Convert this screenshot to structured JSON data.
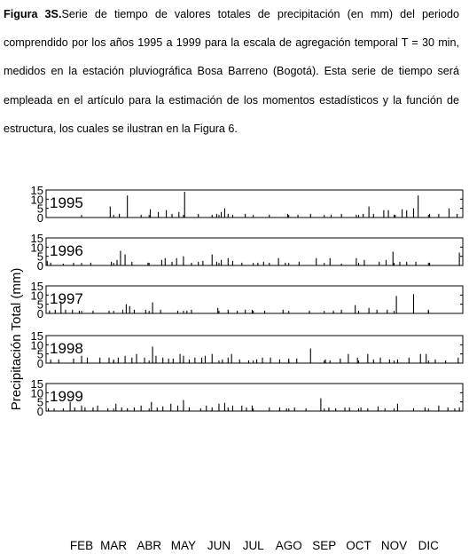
{
  "caption": {
    "lead": "Figura 3S.",
    "text": "Serie de tiempo de valores totales de precipitación (en mm) del periodo comprendido por los años 1995 a 1999 para la escala de agregación temporal T = 30 min, medidos en la estación pluviográfica Bosa Barreno (Bogotá). Esta serie de tiempo será empleada en el artículo para la estimación de los momentos estadísticos y la función de estructura, los cuales se ilustran en la Figura 6."
  },
  "chart_data": {
    "type": "bar",
    "ylabel": "Precipitación Total (mm)",
    "ylim": [
      0,
      15
    ],
    "yticks": [
      0,
      5,
      10,
      15
    ],
    "month_labels": [
      "FEB",
      "MAR",
      "ABR",
      "MAY",
      "JUN",
      "JUL",
      "AGO",
      "SEP",
      "OCT",
      "NOV",
      "DIC"
    ],
    "month_label_day": [
      32,
      60,
      91,
      121,
      152,
      182,
      213,
      244,
      274,
      305,
      335
    ],
    "xlim": [
      1,
      365
    ],
    "panels": [
      {
        "year": "1995",
        "events": [
          [
            57,
            6
          ],
          [
            65,
            2
          ],
          [
            72,
            12
          ],
          [
            84,
            1.5
          ],
          [
            92,
            4.5
          ],
          [
            99,
            3
          ],
          [
            106,
            4
          ],
          [
            111,
            2
          ],
          [
            117,
            3
          ],
          [
            122,
            14
          ],
          [
            134,
            2
          ],
          [
            146,
            1.5
          ],
          [
            150,
            2
          ],
          [
            154,
            3
          ],
          [
            157,
            5
          ],
          [
            160,
            2
          ],
          [
            164,
            1.5
          ],
          [
            175,
            2
          ],
          [
            196,
            1.5
          ],
          [
            212,
            2
          ],
          [
            221,
            1.5
          ],
          [
            232,
            2
          ],
          [
            250,
            1.5
          ],
          [
            259,
            2
          ],
          [
            272,
            1.5
          ],
          [
            278,
            2
          ],
          [
            283,
            6
          ],
          [
            287,
            2
          ],
          [
            296,
            4
          ],
          [
            300,
            4
          ],
          [
            306,
            1.5
          ],
          [
            312,
            4.5
          ],
          [
            316,
            4
          ],
          [
            322,
            5
          ],
          [
            326,
            12
          ],
          [
            336,
            2
          ],
          [
            344,
            2
          ],
          [
            353,
            5
          ],
          [
            360,
            2
          ]
        ]
      },
      {
        "year": "1996",
        "events": [
          [
            2,
            2.5
          ],
          [
            5,
            1.5
          ],
          [
            16,
            1
          ],
          [
            25,
            1.5
          ],
          [
            40,
            1.5
          ],
          [
            58,
            2
          ],
          [
            63,
            3
          ],
          [
            66,
            8
          ],
          [
            70,
            6
          ],
          [
            76,
            2
          ],
          [
            90,
            1.5
          ],
          [
            102,
            3
          ],
          [
            105,
            4
          ],
          [
            111,
            2
          ],
          [
            115,
            4
          ],
          [
            121,
            5
          ],
          [
            128,
            1.5
          ],
          [
            134,
            2
          ],
          [
            138,
            2.5
          ],
          [
            146,
            6
          ],
          [
            150,
            2
          ],
          [
            154,
            3
          ],
          [
            160,
            4
          ],
          [
            164,
            2.5
          ],
          [
            172,
            1.5
          ],
          [
            186,
            1.5
          ],
          [
            191,
            2
          ],
          [
            196,
            1.5
          ],
          [
            204,
            4
          ],
          [
            210,
            1.5
          ],
          [
            222,
            2
          ],
          [
            237,
            4
          ],
          [
            249,
            4
          ],
          [
            259,
            1
          ],
          [
            272,
            4
          ],
          [
            279,
            3
          ],
          [
            292,
            2
          ],
          [
            298,
            3
          ],
          [
            304,
            7.5
          ],
          [
            310,
            2
          ],
          [
            316,
            2
          ],
          [
            324,
            2
          ],
          [
            336,
            1.5
          ],
          [
            362,
            7
          ]
        ]
      },
      {
        "year": "1997",
        "events": [
          [
            4,
            1.5
          ],
          [
            9,
            2
          ],
          [
            14,
            6.5
          ],
          [
            18,
            2
          ],
          [
            24,
            2
          ],
          [
            30,
            1.5
          ],
          [
            42,
            1.5
          ],
          [
            56,
            1.5
          ],
          [
            68,
            2
          ],
          [
            71,
            5
          ],
          [
            74,
            4
          ],
          [
            78,
            2
          ],
          [
            88,
            2
          ],
          [
            94,
            6
          ],
          [
            101,
            2
          ],
          [
            116,
            1.5
          ],
          [
            124,
            1.5
          ],
          [
            128,
            2
          ],
          [
            151,
            3
          ],
          [
            160,
            2
          ],
          [
            168,
            1.5
          ],
          [
            175,
            2
          ],
          [
            181,
            2
          ],
          [
            192,
            1.5
          ],
          [
            208,
            2
          ],
          [
            231,
            1.5
          ],
          [
            252,
            1.5
          ],
          [
            259,
            2
          ],
          [
            271,
            4.5
          ],
          [
            283,
            3
          ],
          [
            290,
            2
          ],
          [
            299,
            2
          ],
          [
            307,
            9.5
          ],
          [
            322,
            10.5
          ],
          [
            335,
            2
          ]
        ]
      },
      {
        "year": "1998",
        "events": [
          [
            5,
            2
          ],
          [
            12,
            2
          ],
          [
            25,
            2.5
          ],
          [
            32,
            4
          ],
          [
            37,
            3
          ],
          [
            48,
            3
          ],
          [
            56,
            3
          ],
          [
            60,
            2
          ],
          [
            64,
            3
          ],
          [
            70,
            4
          ],
          [
            76,
            3
          ],
          [
            80,
            5
          ],
          [
            87,
            3
          ],
          [
            94,
            9
          ],
          [
            97,
            4
          ],
          [
            103,
            3
          ],
          [
            108,
            2.5
          ],
          [
            112,
            2.5
          ],
          [
            118,
            5
          ],
          [
            121,
            4
          ],
          [
            126,
            2
          ],
          [
            131,
            3
          ],
          [
            137,
            3
          ],
          [
            140,
            4
          ],
          [
            146,
            5
          ],
          [
            155,
            2
          ],
          [
            160,
            3
          ],
          [
            163,
            5
          ],
          [
            170,
            2
          ],
          [
            178,
            1.5
          ],
          [
            185,
            2
          ],
          [
            190,
            3
          ],
          [
            197,
            3
          ],
          [
            205,
            2
          ],
          [
            213,
            2.5
          ],
          [
            220,
            2.5
          ],
          [
            232,
            8
          ],
          [
            245,
            2
          ],
          [
            249,
            1.5
          ],
          [
            258,
            2.5
          ],
          [
            265,
            5
          ],
          [
            273,
            3
          ],
          [
            282,
            5
          ],
          [
            287,
            2
          ],
          [
            293,
            3
          ],
          [
            301,
            2
          ],
          [
            308,
            2
          ],
          [
            318,
            3
          ],
          [
            328,
            5
          ],
          [
            333,
            5
          ],
          [
            341,
            2
          ],
          [
            350,
            1.5
          ],
          [
            361,
            3
          ]
        ]
      },
      {
        "year": "1999",
        "events": [
          [
            3,
            1.5
          ],
          [
            8,
            1.5
          ],
          [
            16,
            1.5
          ],
          [
            22,
            5
          ],
          [
            26,
            2
          ],
          [
            32,
            3
          ],
          [
            35,
            2
          ],
          [
            42,
            2
          ],
          [
            46,
            3
          ],
          [
            55,
            1.5
          ],
          [
            62,
            4
          ],
          [
            67,
            2
          ],
          [
            72,
            1.5
          ],
          [
            78,
            2
          ],
          [
            84,
            3
          ],
          [
            93,
            5
          ],
          [
            98,
            2
          ],
          [
            103,
            2.5
          ],
          [
            110,
            4
          ],
          [
            116,
            3
          ],
          [
            121,
            6
          ],
          [
            126,
            2
          ],
          [
            136,
            1.5
          ],
          [
            141,
            3
          ],
          [
            146,
            2
          ],
          [
            152,
            4
          ],
          [
            157,
            4.5
          ],
          [
            160,
            2
          ],
          [
            164,
            3
          ],
          [
            172,
            3
          ],
          [
            176,
            2
          ],
          [
            181,
            3
          ],
          [
            196,
            2
          ],
          [
            205,
            2
          ],
          [
            211,
            1.5
          ],
          [
            218,
            2
          ],
          [
            228,
            1.5
          ],
          [
            241,
            7
          ],
          [
            248,
            2
          ],
          [
            254,
            1.5
          ],
          [
            262,
            2
          ],
          [
            266,
            2
          ],
          [
            276,
            2
          ],
          [
            282,
            1.5
          ],
          [
            291,
            2.5
          ],
          [
            297,
            1.5
          ],
          [
            308,
            4
          ],
          [
            322,
            1.5
          ],
          [
            332,
            2
          ],
          [
            344,
            3
          ],
          [
            352,
            2
          ],
          [
            358,
            1.5
          ],
          [
            362,
            2
          ]
        ]
      }
    ]
  }
}
